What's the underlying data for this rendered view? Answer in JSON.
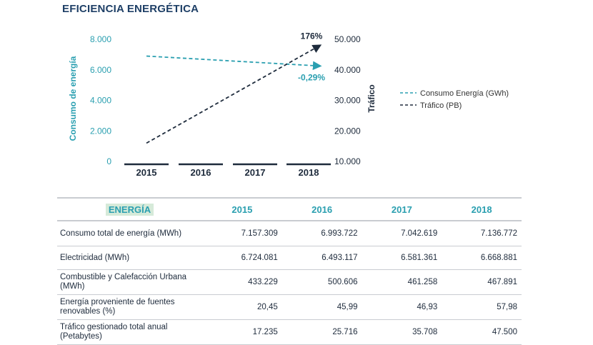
{
  "title": "EFICIENCIA ENERGÉTICA",
  "chart_data": {
    "type": "line",
    "x": [
      "2015",
      "2016",
      "2017",
      "2018"
    ],
    "series": [
      {
        "name": "Consumo Energía (GWh)",
        "axis": "left",
        "style": "dashed",
        "color": "#2a9fb0",
        "points": [
          [
            2015,
            6900
          ],
          [
            2018,
            6250
          ]
        ]
      },
      {
        "name": "Tráfico (PB)",
        "axis": "right",
        "style": "dashed",
        "color": "#1e2b3c",
        "points": [
          [
            2015,
            16000
          ],
          [
            2018,
            48000
          ]
        ]
      }
    ],
    "ylabel_left": "Consumo de energía",
    "ylabel_right": "Tráfico",
    "ylim_left": [
      0,
      8000
    ],
    "ylim_right": [
      10000,
      50000
    ],
    "yticks_left": [
      "0",
      "2.000",
      "4.000",
      "6.000",
      "8.000"
    ],
    "yticks_right": [
      "10.000",
      "20.000",
      "30.000",
      "40.000",
      "50.000"
    ],
    "annotations": [
      {
        "text": "176%",
        "series": "Tráfico (PB)"
      },
      {
        "text": "-0,29%",
        "series": "Consumo Energía (GWh)"
      }
    ],
    "legend_position": "right",
    "grid": false
  },
  "table": {
    "corner": "ENERGÍA",
    "headers": [
      "2015",
      "2016",
      "2017",
      "2018"
    ],
    "rows": [
      {
        "label": "Consumo total de energía (MWh)",
        "values": [
          "7.157.309",
          "6.993.722",
          "7.042.619",
          "7.136.772"
        ]
      },
      {
        "label": "Electricidad (MWh)",
        "values": [
          "6.724.081",
          "6.493.117",
          "6.581.361",
          "6.668.881"
        ]
      },
      {
        "label": "Combustible y Calefacción Urbana (MWh)",
        "values": [
          "433.229",
          "500.606",
          "461.258",
          "467.891"
        ]
      },
      {
        "label": "Energía proveniente de fuentes renovables (%)",
        "values": [
          "20,45",
          "45,99",
          "46,93",
          "57,98"
        ]
      },
      {
        "label": "Tráfico gestionado total anual (Petabytes)",
        "values": [
          "17.235",
          "25.716",
          "35.708",
          "47.500"
        ]
      }
    ]
  }
}
